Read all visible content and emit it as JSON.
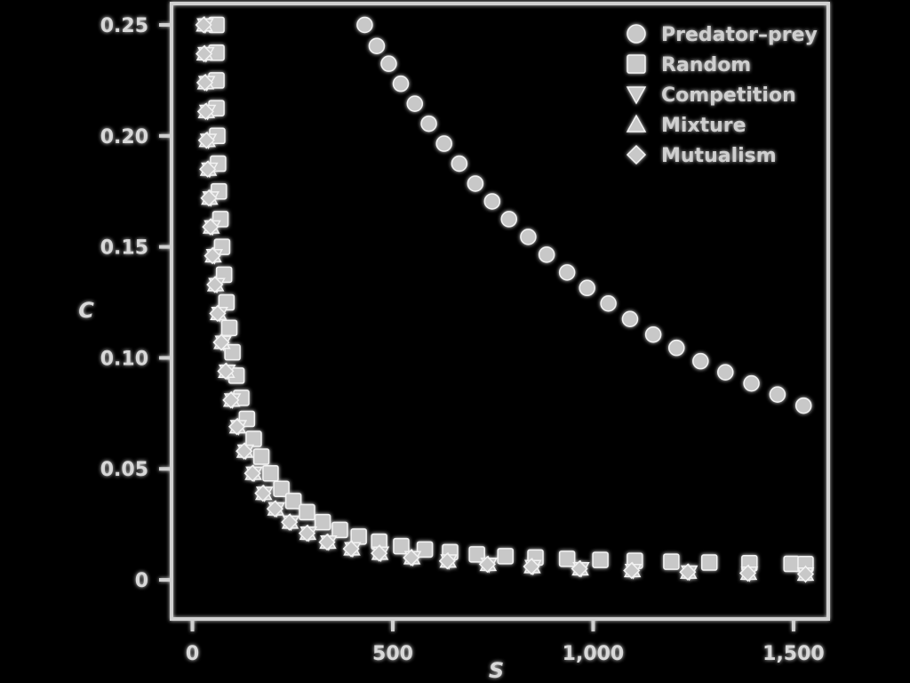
{
  "chart_data": {
    "type": "scatter",
    "title": "",
    "xlabel": "S",
    "ylabel": "C",
    "xlim": [
      -10,
      1560
    ],
    "ylim": [
      -0.008,
      0.25
    ],
    "x_ticks": [
      0,
      500,
      1000,
      1500
    ],
    "x_tick_labels": [
      "0",
      "500",
      "1,000",
      "1,500"
    ],
    "y_ticks": [
      0,
      0.05,
      0.1,
      0.15,
      0.2,
      0.25
    ],
    "y_tick_labels": [
      "0",
      "0.05",
      "0.10",
      "0.15",
      "0.20",
      "0.25"
    ],
    "grid": false,
    "legend": {
      "position": "top-right"
    },
    "series": [
      {
        "name": "Predator–prey",
        "marker": "circle",
        "x": [
          430,
          460,
          490,
          520,
          555,
          590,
          628,
          666,
          706,
          748,
          790,
          838,
          884,
          935,
          985,
          1038,
          1092,
          1150,
          1208,
          1268,
          1330,
          1395,
          1460,
          1525
        ],
        "y": [
          0.25,
          0.2405,
          0.2325,
          0.2235,
          0.2145,
          0.2055,
          0.1965,
          0.1875,
          0.1785,
          0.1705,
          0.1625,
          0.1545,
          0.1465,
          0.1385,
          0.1315,
          0.1245,
          0.1175,
          0.1105,
          0.1045,
          0.0985,
          0.0935,
          0.0885,
          0.0835,
          0.0785
        ]
      },
      {
        "name": "Random",
        "marker": "square",
        "x": [
          60,
          60,
          60,
          60,
          62,
          64,
          66,
          70,
          74,
          79,
          85,
          92,
          100,
          110,
          122,
          136,
          153,
          172,
          195,
          222,
          252,
          286,
          325,
          368,
          415,
          466,
          521,
          580,
          643,
          710,
          781,
          856,
          935,
          1018,
          1104,
          1195,
          1290,
          1390,
          1495,
          1530
        ],
        "y": [
          0.25,
          0.2375,
          0.225,
          0.2125,
          0.2,
          0.1875,
          0.175,
          0.1625,
          0.15,
          0.1375,
          0.125,
          0.1135,
          0.1025,
          0.092,
          0.082,
          0.0725,
          0.0635,
          0.0555,
          0.048,
          0.041,
          0.0355,
          0.0305,
          0.026,
          0.0225,
          0.0195,
          0.0172,
          0.0152,
          0.0137,
          0.0125,
          0.0115,
          0.0107,
          0.0101,
          0.0095,
          0.009,
          0.0086,
          0.0082,
          0.0078,
          0.0075,
          0.0072,
          0.0071
        ]
      },
      {
        "name": "Competition",
        "marker": "triangle-down",
        "x": [
          32,
          34,
          36,
          38,
          40,
          43,
          46,
          50,
          55,
          61,
          68,
          77,
          87,
          100,
          115,
          133,
          154,
          180,
          210,
          246,
          290,
          340,
          400,
          470,
          550,
          640,
          740,
          850,
          970,
          1100,
          1240,
          1390,
          1530
        ],
        "y": [
          0.25,
          0.237,
          0.224,
          0.211,
          0.198,
          0.185,
          0.172,
          0.159,
          0.146,
          0.133,
          0.12,
          0.107,
          0.094,
          0.081,
          0.069,
          0.058,
          0.048,
          0.039,
          0.032,
          0.026,
          0.021,
          0.017,
          0.014,
          0.012,
          0.01,
          0.0085,
          0.007,
          0.006,
          0.005,
          0.0042,
          0.0035,
          0.003,
          0.0026
        ]
      },
      {
        "name": "Mixture",
        "marker": "triangle-up",
        "x": [
          30,
          31,
          33,
          35,
          37,
          40,
          43,
          47,
          52,
          58,
          65,
          74,
          85,
          98,
          113,
          131,
          152,
          178,
          208,
          244,
          288,
          338,
          398,
          468,
          548,
          638,
          738,
          848,
          968,
          1098,
          1238,
          1388,
          1530
        ],
        "y": [
          0.25,
          0.237,
          0.224,
          0.211,
          0.198,
          0.185,
          0.172,
          0.159,
          0.146,
          0.133,
          0.12,
          0.107,
          0.094,
          0.081,
          0.069,
          0.058,
          0.048,
          0.039,
          0.032,
          0.026,
          0.021,
          0.017,
          0.014,
          0.012,
          0.01,
          0.0085,
          0.007,
          0.006,
          0.005,
          0.0042,
          0.0035,
          0.003,
          0.0026
        ]
      },
      {
        "name": "Mutualism",
        "marker": "diamond",
        "x": [
          28,
          29,
          31,
          33,
          35,
          38,
          41,
          45,
          50,
          56,
          63,
          72,
          83,
          96,
          111,
          129,
          150,
          176,
          206,
          242,
          286,
          336,
          396,
          466,
          546,
          636,
          736,
          846,
          966,
          1096,
          1236,
          1386,
          1530
        ],
        "y": [
          0.25,
          0.237,
          0.224,
          0.211,
          0.198,
          0.185,
          0.172,
          0.159,
          0.146,
          0.133,
          0.12,
          0.107,
          0.094,
          0.081,
          0.069,
          0.058,
          0.048,
          0.039,
          0.032,
          0.026,
          0.021,
          0.017,
          0.014,
          0.012,
          0.01,
          0.0085,
          0.007,
          0.006,
          0.005,
          0.0042,
          0.0035,
          0.003,
          0.0026
        ]
      }
    ]
  },
  "style": {
    "background": "#000000",
    "axis_color": "#d0d0d0",
    "marker_fill": "#c8c8c8",
    "marker_stroke": "#f2f2f2"
  }
}
